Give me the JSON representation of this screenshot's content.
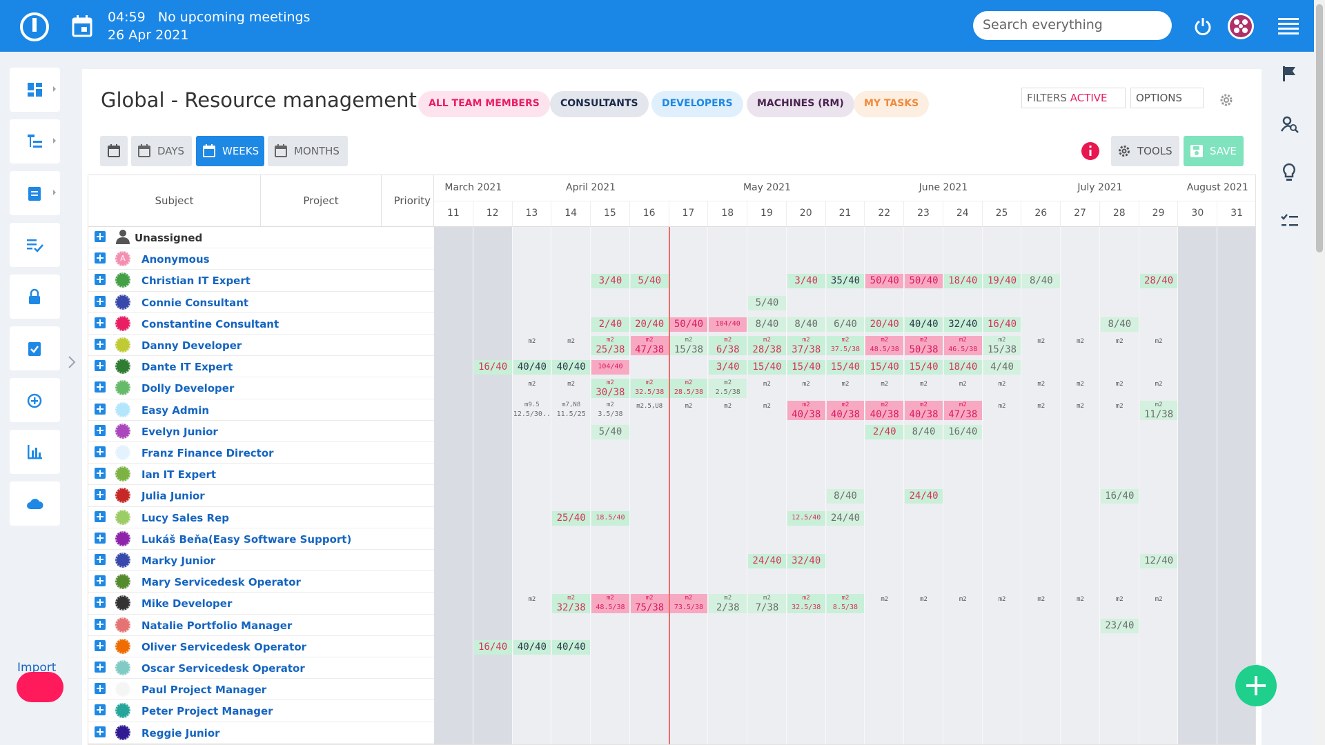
{
  "topbar": {
    "time": "04:59",
    "meeting": "No upcoming meetings",
    "date": "26 Apr 2021",
    "search_placeholder": "Search everything"
  },
  "sidebar": {
    "import": "Import"
  },
  "page": {
    "title": "Global - Resource management",
    "filters": [
      {
        "label": "ALL TEAM MEMBERS",
        "color": "#e91e63",
        "bg": "#fde3ee"
      },
      {
        "label": "CONSULTANTS",
        "color": "#1b2a4a",
        "bg": "#e3e6ec"
      },
      {
        "label": "DEVELOPERS",
        "color": "#1e88e5",
        "bg": "#dff0fc"
      },
      {
        "label": "MACHINES (RM)",
        "color": "#4a2350",
        "bg": "#ebe4ee"
      },
      {
        "label": "MY TASKS",
        "color": "#f08a3a",
        "bg": "#fdeee2"
      }
    ],
    "filters_active": {
      "prefix": "FILTERS",
      "state": "ACTIVE"
    },
    "options": "OPTIONS",
    "views": [
      "DAYS",
      "WEEKS",
      "MONTHS"
    ],
    "active_view": 1,
    "tools": "TOOLS",
    "save": "SAVE"
  },
  "grid": {
    "columns": [
      "Subject",
      "Project",
      "Priority"
    ],
    "months": [
      {
        "label": "March 2021",
        "start_week": 11
      },
      {
        "label": "April 2021",
        "start_week": 13
      },
      {
        "label": "May 2021",
        "start_week": 17
      },
      {
        "label": "June 2021",
        "start_week": 22
      },
      {
        "label": "July 2021",
        "start_week": 26
      },
      {
        "label": "August 2021",
        "start_week": 30
      }
    ],
    "weeks": [
      11,
      12,
      13,
      14,
      15,
      16,
      17,
      18,
      19,
      20,
      21,
      22,
      23,
      24,
      25,
      26,
      27,
      28,
      29,
      30,
      31
    ],
    "shaded_weeks": [
      11,
      12,
      30,
      31
    ],
    "today_after_week": 16,
    "rows": [
      {
        "name": "Unassigned",
        "avatar": "#555555",
        "icon": "person",
        "cells": []
      },
      {
        "name": "Anonymous",
        "avatar": "#f48fb1",
        "letter": "A",
        "cells": []
      },
      {
        "name": "Christian IT Expert",
        "avatar": "#43a047",
        "cells": [
          {
            "week": 15,
            "text": "3/40",
            "tone": "ok"
          },
          {
            "week": 16,
            "text": "5/40",
            "tone": "ok"
          },
          {
            "week": 20,
            "text": "3/40",
            "tone": "ok"
          },
          {
            "week": 21,
            "text": "35/40",
            "tone": "full"
          },
          {
            "week": 22,
            "text": "50/40",
            "tone": "over"
          },
          {
            "week": 23,
            "text": "50/40",
            "tone": "over"
          },
          {
            "week": 24,
            "text": "18/40",
            "tone": "ok"
          },
          {
            "week": 25,
            "text": "19/40",
            "tone": "ok"
          },
          {
            "week": 26,
            "text": "8/40",
            "tone": "low"
          },
          {
            "week": 29,
            "text": "28/40",
            "tone": "ok"
          }
        ]
      },
      {
        "name": "Connie Consultant",
        "avatar": "#3949ab",
        "cells": [
          {
            "week": 19,
            "text": "5/40",
            "tone": "low"
          }
        ]
      },
      {
        "name": "Constantine Consultant",
        "avatar": "#e91e63",
        "cells": [
          {
            "week": 15,
            "text": "2/40",
            "tone": "ok"
          },
          {
            "week": 16,
            "text": "20/40",
            "tone": "ok"
          },
          {
            "week": 17,
            "text": "50/40",
            "tone": "over"
          },
          {
            "week": 18,
            "text": "104/40",
            "tone": "over"
          },
          {
            "week": 19,
            "text": "8/40",
            "tone": "low"
          },
          {
            "week": 20,
            "text": "8/40",
            "tone": "low"
          },
          {
            "week": 21,
            "text": "6/40",
            "tone": "low"
          },
          {
            "week": 22,
            "text": "20/40",
            "tone": "ok"
          },
          {
            "week": 23,
            "text": "40/40",
            "tone": "full"
          },
          {
            "week": 24,
            "text": "32/40",
            "tone": "full"
          },
          {
            "week": 25,
            "text": "16/40",
            "tone": "ok"
          },
          {
            "week": 28,
            "text": "8/40",
            "tone": "low"
          }
        ]
      },
      {
        "name": "Danny Developer",
        "avatar": "#c0ca33",
        "cells": [
          {
            "week": 13,
            "note": "m2"
          },
          {
            "week": 14,
            "note": "m2"
          },
          {
            "week": 15,
            "note": "m2",
            "text": "25/38",
            "tone": "ok"
          },
          {
            "week": 16,
            "note": "m2",
            "text": "47/38",
            "tone": "over"
          },
          {
            "week": 17,
            "note": "m2",
            "text": "15/38",
            "tone": "low"
          },
          {
            "week": 18,
            "note": "m2",
            "text": "6/38",
            "tone": "ok"
          },
          {
            "week": 19,
            "note": "m2",
            "text": "28/38",
            "tone": "ok"
          },
          {
            "week": 20,
            "note": "m2",
            "text": "37/38",
            "tone": "ok"
          },
          {
            "week": 21,
            "note": "m2",
            "text": "37.5/38",
            "tone": "ok"
          },
          {
            "week": 22,
            "note": "m2",
            "text": "48.5/38",
            "tone": "over"
          },
          {
            "week": 23,
            "note": "m2",
            "text": "50/38",
            "tone": "over"
          },
          {
            "week": 24,
            "note": "m2",
            "text": "46.5/38",
            "tone": "over"
          },
          {
            "week": 25,
            "note": "m2",
            "text": "15/38",
            "tone": "low"
          },
          {
            "week": 26,
            "note": "m2"
          },
          {
            "week": 27,
            "note": "m2"
          },
          {
            "week": 28,
            "note": "m2"
          },
          {
            "week": 29,
            "note": "m2"
          }
        ]
      },
      {
        "name": "Dante IT Expert",
        "avatar": "#2e7d32",
        "cells": [
          {
            "week": 12,
            "text": "16/40",
            "tone": "ok"
          },
          {
            "week": 13,
            "text": "40/40",
            "tone": "full"
          },
          {
            "week": 14,
            "text": "40/40",
            "tone": "full"
          },
          {
            "week": 15,
            "text": "104/40",
            "tone": "over"
          },
          {
            "week": 18,
            "text": "3/40",
            "tone": "ok"
          },
          {
            "week": 19,
            "text": "15/40",
            "tone": "ok"
          },
          {
            "week": 20,
            "text": "15/40",
            "tone": "ok"
          },
          {
            "week": 21,
            "text": "15/40",
            "tone": "ok"
          },
          {
            "week": 22,
            "text": "15/40",
            "tone": "ok"
          },
          {
            "week": 23,
            "text": "15/40",
            "tone": "ok"
          },
          {
            "week": 24,
            "text": "18/40",
            "tone": "ok"
          },
          {
            "week": 25,
            "text": "4/40",
            "tone": "low"
          }
        ]
      },
      {
        "name": "Dolly Developer",
        "avatar": "#66bb6a",
        "cells": [
          {
            "week": 13,
            "note": "m2"
          },
          {
            "week": 14,
            "note": "m2"
          },
          {
            "week": 15,
            "note": "m2",
            "text": "30/38",
            "tone": "ok"
          },
          {
            "week": 16,
            "note": "m2",
            "text": "32.5/38",
            "tone": "ok"
          },
          {
            "week": 17,
            "note": "m2",
            "text": "28.5/38",
            "tone": "ok"
          },
          {
            "week": 18,
            "note": "m2",
            "text": "2.5/38",
            "tone": "low"
          },
          {
            "week": 19,
            "note": "m2"
          },
          {
            "week": 20,
            "note": "m2"
          },
          {
            "week": 21,
            "note": "m2"
          },
          {
            "week": 22,
            "note": "m2"
          },
          {
            "week": 23,
            "note": "m2"
          },
          {
            "week": 24,
            "note": "m2"
          },
          {
            "week": 25,
            "note": "m2"
          },
          {
            "week": 26,
            "note": "m2"
          },
          {
            "week": 27,
            "note": "m2"
          },
          {
            "week": 28,
            "note": "m2"
          },
          {
            "week": 29,
            "note": "m2"
          }
        ]
      },
      {
        "name": "Easy Admin",
        "avatar": "#b3e5fc",
        "cells": [
          {
            "week": 13,
            "note": "m9.5",
            "text": "12.5/30..",
            "tone": "plain"
          },
          {
            "week": 14,
            "note": "m7,N8",
            "text": "11.5/25",
            "tone": "plain"
          },
          {
            "week": 15,
            "note": "m2",
            "text": "3.5/38",
            "tone": "plain"
          },
          {
            "week": 16,
            "note": "m2.5,U8"
          },
          {
            "week": 17,
            "note": "m2"
          },
          {
            "week": 18,
            "note": "m2"
          },
          {
            "week": 19,
            "note": "m2"
          },
          {
            "week": 20,
            "note": "m2",
            "text": "40/38",
            "tone": "over"
          },
          {
            "week": 21,
            "note": "m2",
            "text": "40/38",
            "tone": "over"
          },
          {
            "week": 22,
            "note": "m2",
            "text": "40/38",
            "tone": "over"
          },
          {
            "week": 23,
            "note": "m2",
            "text": "40/38",
            "tone": "over"
          },
          {
            "week": 24,
            "note": "m2",
            "text": "47/38",
            "tone": "over"
          },
          {
            "week": 25,
            "note": "m2"
          },
          {
            "week": 26,
            "note": "m2"
          },
          {
            "week": 27,
            "note": "m2"
          },
          {
            "week": 28,
            "note": "m2"
          },
          {
            "week": 29,
            "note": "m2",
            "text": "11/38",
            "tone": "low"
          }
        ]
      },
      {
        "name": "Evelyn Junior",
        "avatar": "#ab47bc",
        "cells": [
          {
            "week": 15,
            "text": "5/40",
            "tone": "low"
          },
          {
            "week": 22,
            "text": "2/40",
            "tone": "ok"
          },
          {
            "week": 23,
            "text": "8/40",
            "tone": "low"
          },
          {
            "week": 24,
            "text": "16/40",
            "tone": "low"
          }
        ]
      },
      {
        "name": "Franz Finance Director",
        "avatar": "#e3f2fd",
        "cells": []
      },
      {
        "name": "Ian IT Expert",
        "avatar": "#7cb342",
        "cells": []
      },
      {
        "name": "Julia Junior",
        "avatar": "#c62828",
        "cells": [
          {
            "week": 21,
            "text": "8/40",
            "tone": "low"
          },
          {
            "week": 23,
            "text": "24/40",
            "tone": "ok"
          },
          {
            "week": 28,
            "text": "16/40",
            "tone": "low"
          }
        ]
      },
      {
        "name": "Lucy Sales Rep",
        "avatar": "#9ccc65",
        "cells": [
          {
            "week": 14,
            "text": "25/40",
            "tone": "ok"
          },
          {
            "week": 15,
            "text": "18.5/40",
            "tone": "ok"
          },
          {
            "week": 20,
            "text": "12.5/40",
            "tone": "ok"
          },
          {
            "week": 21,
            "text": "24/40",
            "tone": "low"
          }
        ]
      },
      {
        "name": "Lukáš Beňa(Easy Software Support)",
        "avatar": "#8e24aa",
        "cells": []
      },
      {
        "name": "Marky Junior",
        "avatar": "#3949ab",
        "cells": [
          {
            "week": 19,
            "text": "24/40",
            "tone": "ok"
          },
          {
            "week": 20,
            "text": "32/40",
            "tone": "ok"
          },
          {
            "week": 29,
            "text": "12/40",
            "tone": "low"
          }
        ]
      },
      {
        "name": "Mary Servicedesk Operator",
        "avatar": "#558b2f",
        "cells": []
      },
      {
        "name": "Mike Developer",
        "avatar": "#333333",
        "cells": [
          {
            "week": 13,
            "note": "m2"
          },
          {
            "week": 14,
            "note": "m2",
            "text": "32/38",
            "tone": "ok"
          },
          {
            "week": 15,
            "note": "m2",
            "text": "48.5/38",
            "tone": "over"
          },
          {
            "week": 16,
            "note": "m2",
            "text": "75/38",
            "tone": "over"
          },
          {
            "week": 17,
            "note": "m2",
            "text": "73.5/38",
            "tone": "over"
          },
          {
            "week": 18,
            "note": "m2",
            "text": "2/38",
            "tone": "low"
          },
          {
            "week": 19,
            "note": "m2",
            "text": "7/38",
            "tone": "low"
          },
          {
            "week": 20,
            "note": "m2",
            "text": "32.5/38",
            "tone": "ok"
          },
          {
            "week": 21,
            "note": "m2",
            "text": "8.5/38",
            "tone": "ok"
          },
          {
            "week": 22,
            "note": "m2"
          },
          {
            "week": 23,
            "note": "m2"
          },
          {
            "week": 24,
            "note": "m2"
          },
          {
            "week": 25,
            "note": "m2"
          },
          {
            "week": 26,
            "note": "m2"
          },
          {
            "week": 27,
            "note": "m2"
          },
          {
            "week": 28,
            "note": "m2"
          },
          {
            "week": 29,
            "note": "m2"
          }
        ]
      },
      {
        "name": "Natalie Portfolio Manager",
        "avatar": "#e57373",
        "cells": [
          {
            "week": 28,
            "text": "23/40",
            "tone": "low"
          }
        ]
      },
      {
        "name": "Oliver Servicedesk Operator",
        "avatar": "#ef6c00",
        "cells": [
          {
            "week": 12,
            "text": "16/40",
            "tone": "ok"
          },
          {
            "week": 13,
            "text": "40/40",
            "tone": "full"
          },
          {
            "week": 14,
            "text": "40/40",
            "tone": "full"
          }
        ]
      },
      {
        "name": "Oscar Servicedesk Operator",
        "avatar": "#80cbc4",
        "cells": []
      },
      {
        "name": "Paul Project Manager",
        "avatar": "#f5f5f5",
        "cells": []
      },
      {
        "name": "Peter Project Manager",
        "avatar": "#26a69a",
        "cells": []
      },
      {
        "name": "Reggie Junior",
        "avatar": "#311b92",
        "cells": []
      }
    ]
  }
}
